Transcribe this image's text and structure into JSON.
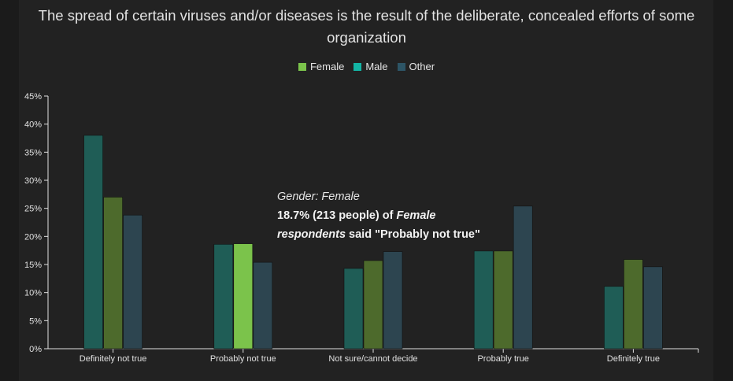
{
  "chart_data": {
    "type": "bar",
    "title": "The spread of certain viruses and/or diseases is the result of the deliberate, concealed efforts of some organization",
    "categories": [
      "Definitely not true",
      "Probably not true",
      "Not sure/cannot decide",
      "Probably true",
      "Definitely true"
    ],
    "series": [
      {
        "name": "Female",
        "color": "#4d6a2c",
        "values": [
          27.0,
          18.7,
          15.7,
          17.4,
          15.9
        ]
      },
      {
        "name": "Male",
        "color": "#1f5d56",
        "values": [
          38.0,
          18.6,
          14.3,
          17.4,
          11.1
        ]
      },
      {
        "name": "Other",
        "color": "#2d4550",
        "values": [
          23.8,
          15.4,
          17.3,
          25.4,
          14.6
        ]
      }
    ],
    "bar_order": [
      "Male",
      "Female",
      "Other"
    ],
    "highlight": {
      "series": "Female",
      "category": "Probably not true",
      "color": "#7bc34b"
    },
    "ylim": [
      0,
      45
    ],
    "yticks": [
      "0%",
      "5%",
      "10%",
      "15%",
      "20%",
      "25%",
      "30%",
      "35%",
      "40%",
      "45%"
    ],
    "legend": {
      "placement": "top-center",
      "entries": [
        {
          "label": "Female",
          "color": "#7bc34b"
        },
        {
          "label": "Male",
          "color": "#13b5a5"
        },
        {
          "label": "Other",
          "color": "#2d5566"
        }
      ]
    },
    "tooltip": {
      "header": "Gender: Female",
      "value": "18.7% (213 people)",
      "of": "of",
      "group": "Female",
      "group2": "respondents",
      "said": "said \"Probably not true\""
    }
  }
}
